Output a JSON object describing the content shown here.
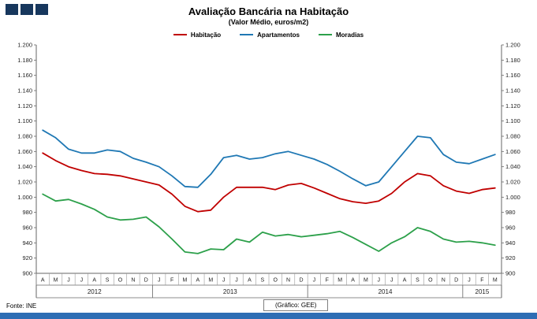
{
  "logo": {
    "square_count": 3,
    "color": "#17375D"
  },
  "chart_data": {
    "type": "line",
    "title": "Avaliação Bancária na Habitação",
    "subtitle": "(Valor Médio, euros/m2)",
    "ylim": [
      900,
      1200
    ],
    "ytick_step": 20,
    "ytick_labels": [
      "1.200",
      "1.180",
      "1.160",
      "1.140",
      "1.120",
      "1.100",
      "1.080",
      "1.060",
      "1.040",
      "1.020",
      "1.000",
      "980",
      "960",
      "940",
      "920",
      "900"
    ],
    "grid": false,
    "legend_position": "top",
    "months": [
      "A",
      "M",
      "J",
      "J",
      "A",
      "S",
      "O",
      "N",
      "D",
      "J",
      "F",
      "M",
      "A",
      "M",
      "J",
      "J",
      "A",
      "S",
      "O",
      "N",
      "D",
      "J",
      "F",
      "M",
      "A",
      "M",
      "J",
      "J",
      "A",
      "S",
      "O",
      "N",
      "D",
      "J",
      "F",
      "M"
    ],
    "year_groups": [
      {
        "label": "2012",
        "span": 9
      },
      {
        "label": "2013",
        "span": 12
      },
      {
        "label": "2014",
        "span": 12
      },
      {
        "label": "2015",
        "span": 3
      }
    ],
    "series": [
      {
        "name": "Habitação",
        "color": "#C00000",
        "values": [
          1058,
          1048,
          1040,
          1035,
          1031,
          1030,
          1028,
          1024,
          1020,
          1016,
          1004,
          988,
          981,
          983,
          1000,
          1013,
          1013,
          1013,
          1010,
          1016,
          1018,
          1012,
          1005,
          998,
          994,
          992,
          995,
          1005,
          1020,
          1031,
          1028,
          1015,
          1008,
          1005,
          1010,
          1012
        ]
      },
      {
        "name": "Apartamentos",
        "color": "#1F78B4",
        "values": [
          1088,
          1078,
          1063,
          1058,
          1058,
          1062,
          1060,
          1051,
          1046,
          1040,
          1028,
          1014,
          1013,
          1030,
          1052,
          1055,
          1050,
          1052,
          1057,
          1060,
          1055,
          1050,
          1043,
          1034,
          1024,
          1015,
          1020,
          1040,
          1060,
          1080,
          1078,
          1056,
          1046,
          1044,
          1050,
          1056
        ]
      },
      {
        "name": "Moradias",
        "color": "#2CA04A",
        "values": [
          1004,
          995,
          997,
          991,
          984,
          974,
          970,
          971,
          974,
          961,
          945,
          928,
          926,
          932,
          931,
          945,
          941,
          954,
          949,
          951,
          948,
          950,
          952,
          955,
          947,
          938,
          929,
          940,
          948,
          960,
          955,
          945,
          941,
          942,
          940,
          937
        ]
      }
    ]
  },
  "footer": {
    "source": "Fonte:  INE",
    "credit": "(Gráfico:  GEE)"
  },
  "bottom_bar_color": "#2E6DB4"
}
